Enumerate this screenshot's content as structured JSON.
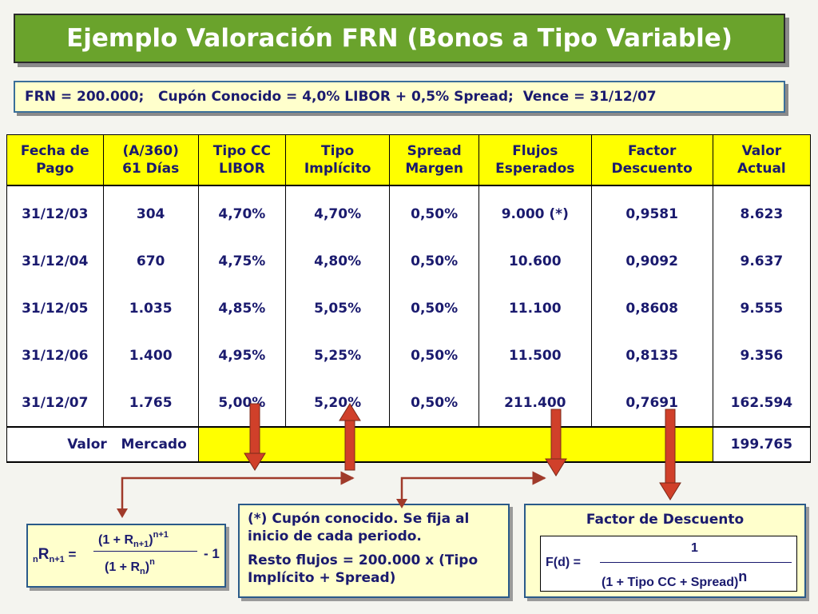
{
  "title": "Ejemplo Valoración FRN (Bonos a Tipo Variable)",
  "info": "FRN = 200.000;   Cupón Conocido = 4,0% LIBOR + 0,5% Spread;  Vence = 31/12/07",
  "table": {
    "headers": [
      [
        "Fecha de",
        "Pago"
      ],
      [
        "(A/360)",
        "61 Días"
      ],
      [
        "Tipo CC",
        "LIBOR"
      ],
      [
        "Tipo",
        "Implícito"
      ],
      [
        "Spread",
        "Margen"
      ],
      [
        "Flujos",
        "Esperados"
      ],
      [
        "Factor",
        "Descuento"
      ],
      [
        "Valor",
        "Actual"
      ]
    ],
    "rows": [
      [
        "31/12/03",
        "304",
        "4,70%",
        "4,70%",
        "0,50%",
        "9.000 (*)",
        "0,9581",
        "8.623"
      ],
      [
        "31/12/04",
        "670",
        "4,75%",
        "4,80%",
        "0,50%",
        "10.600",
        "0,9092",
        "9.637"
      ],
      [
        "31/12/05",
        "1.035",
        "4,85%",
        "5,05%",
        "0,50%",
        "11.100",
        "0,8608",
        "9.555"
      ],
      [
        "31/12/06",
        "1.400",
        "4,95%",
        "5,25%",
        "0,50%",
        "11.500",
        "0,8135",
        "9.356"
      ],
      [
        "31/12/07",
        "1.765",
        "5,00%",
        "5,20%",
        "0,50%",
        "211.400",
        "0,7691",
        "162.594"
      ]
    ],
    "total_label": "Valor   Mercado",
    "total_value": "199.765"
  },
  "note": {
    "line1": "(*) Cupón conocido. Se fija al inicio de cada periodo.",
    "line2": "Resto flujos = 200.000 x (Tipo Implícito + Spread)"
  },
  "factor": {
    "title": "Factor de Descuento",
    "lhs": "F(d) =",
    "numerator": "1",
    "denominator": "(1 + Tipo CC + Spread)",
    "exponent": "n"
  },
  "forward": {
    "lhs_pre": "n",
    "lhs_R": "R",
    "lhs_sub": "n+1",
    "equals": "=",
    "num": "(1 + R",
    "num_sub": "n+1",
    "num_close": ")",
    "num_exp": "n+1",
    "den": "(1 + R",
    "den_sub": "n",
    "den_close": ")",
    "den_exp": "n",
    "minus": "- 1"
  },
  "colors": {
    "title_bg": "#6aa32c",
    "header_bg": "#ffff00",
    "box_bg": "#ffffcc",
    "arrow": "#d0402a",
    "connector": "#a03a2a"
  }
}
